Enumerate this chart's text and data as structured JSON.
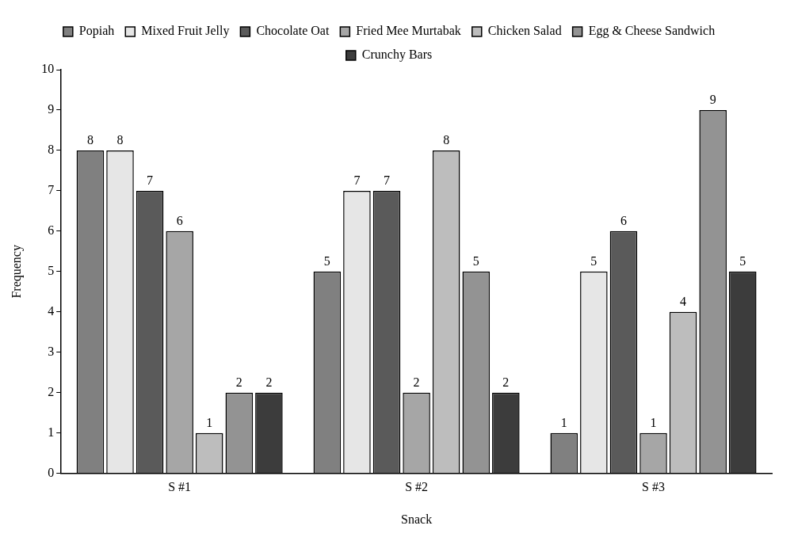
{
  "chart_data": {
    "type": "bar",
    "xlabel": "Snack",
    "ylabel": "Frequency",
    "categories": [
      "S #1",
      "S #2",
      "S #3"
    ],
    "series": [
      {
        "name": "Popiah",
        "color": "#808080",
        "values": [
          8,
          5,
          1
        ]
      },
      {
        "name": "Mixed Fruit Jelly",
        "color": "#e6e6e6",
        "values": [
          8,
          7,
          5
        ]
      },
      {
        "name": "Chocolate Oat",
        "color": "#5a5a5a",
        "values": [
          7,
          7,
          6
        ]
      },
      {
        "name": "Fried Mee Murtabak",
        "color": "#a6a6a6",
        "values": [
          6,
          2,
          1
        ]
      },
      {
        "name": "Chicken Salad",
        "color": "#bdbdbd",
        "values": [
          1,
          8,
          4
        ]
      },
      {
        "name": "Egg & Cheese Sandwich",
        "color": "#939393",
        "values": [
          2,
          5,
          9
        ]
      },
      {
        "name": "Crunchy Bars",
        "color": "#3c3c3c",
        "values": [
          2,
          2,
          5
        ]
      }
    ],
    "ylim": [
      0,
      10
    ],
    "yticks": [
      0,
      1,
      2,
      3,
      4,
      5,
      6,
      7,
      8,
      9,
      10
    ],
    "grid": false,
    "legend": "top",
    "data_labels": true
  }
}
